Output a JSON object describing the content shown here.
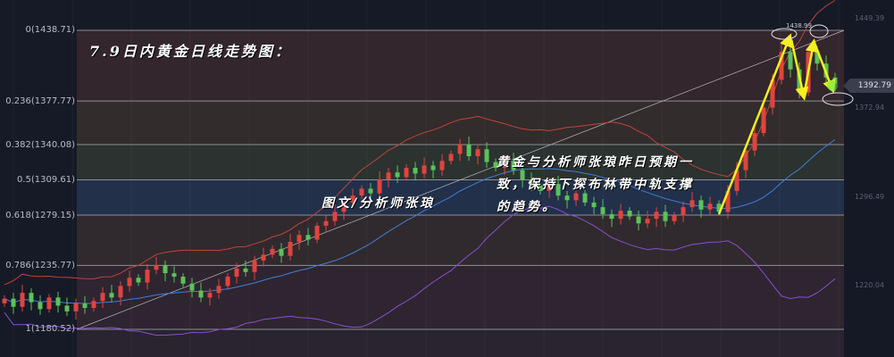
{
  "title": "7.9日内黄金日线走势图：",
  "annotation_main": [
    "黄金与分析师张琅昨日预期一",
    "致，保持下探布林带中轨支撑",
    "的趋势。"
  ],
  "credit": "图文/分析师张琅",
  "chart_data": {
    "type": "candlestick",
    "fib_levels": [
      {
        "ratio": 0,
        "price": 1438.71,
        "label": "0(1438.71)"
      },
      {
        "ratio": 0.236,
        "price": 1377.77,
        "label": "0.236(1377.77)"
      },
      {
        "ratio": 0.382,
        "price": 1340.08,
        "label": "0.382(1340.08)"
      },
      {
        "ratio": 0.5,
        "price": 1309.61,
        "label": "0.5(1309.61)"
      },
      {
        "ratio": 0.618,
        "price": 1279.15,
        "label": "0.618(1279.15)"
      },
      {
        "ratio": 0.786,
        "price": 1235.77,
        "label": "0.786(1235.77)"
      },
      {
        "ratio": 1,
        "price": 1180.52,
        "label": "1(1180.52)"
      }
    ],
    "right_axis_ticks": [
      "1449.39",
      "1372.94",
      "1296.49",
      "1220.04"
    ],
    "current_price": "1392.79",
    "high_marker": "1438.99",
    "closes": [
      1207,
      1200,
      1212,
      1204,
      1198,
      1208,
      1201,
      1196,
      1203,
      1199,
      1205,
      1212,
      1208,
      1218,
      1225,
      1221,
      1232,
      1236,
      1229,
      1226,
      1220,
      1214,
      1208,
      1212,
      1218,
      1226,
      1233,
      1230,
      1240,
      1245,
      1250,
      1244,
      1256,
      1262,
      1258,
      1270,
      1274,
      1282,
      1290,
      1296,
      1302,
      1298,
      1310,
      1316,
      1312,
      1320,
      1315,
      1322,
      1318,
      1326,
      1332,
      1340,
      1330,
      1336,
      1325,
      1320,
      1326,
      1318,
      1310,
      1305,
      1300,
      1306,
      1296,
      1292,
      1298,
      1290,
      1286,
      1280,
      1276,
      1283,
      1278,
      1272,
      1276,
      1282,
      1274,
      1279,
      1286,
      1292,
      1284,
      1289,
      1282,
      1300,
      1318,
      1335,
      1350,
      1372,
      1396,
      1420,
      1405,
      1385,
      1420,
      1410,
      1398,
      1392.79
    ],
    "indicators": [
      "bollinger-upper",
      "bollinger-middle",
      "bollinger-lower"
    ],
    "colors": {
      "up": "#e0443e",
      "down": "#5cc25a",
      "upper": "#c0443a",
      "middle": "#3f7fd6",
      "lower": "#8a4fd0",
      "arrow": "#f5f020"
    }
  }
}
